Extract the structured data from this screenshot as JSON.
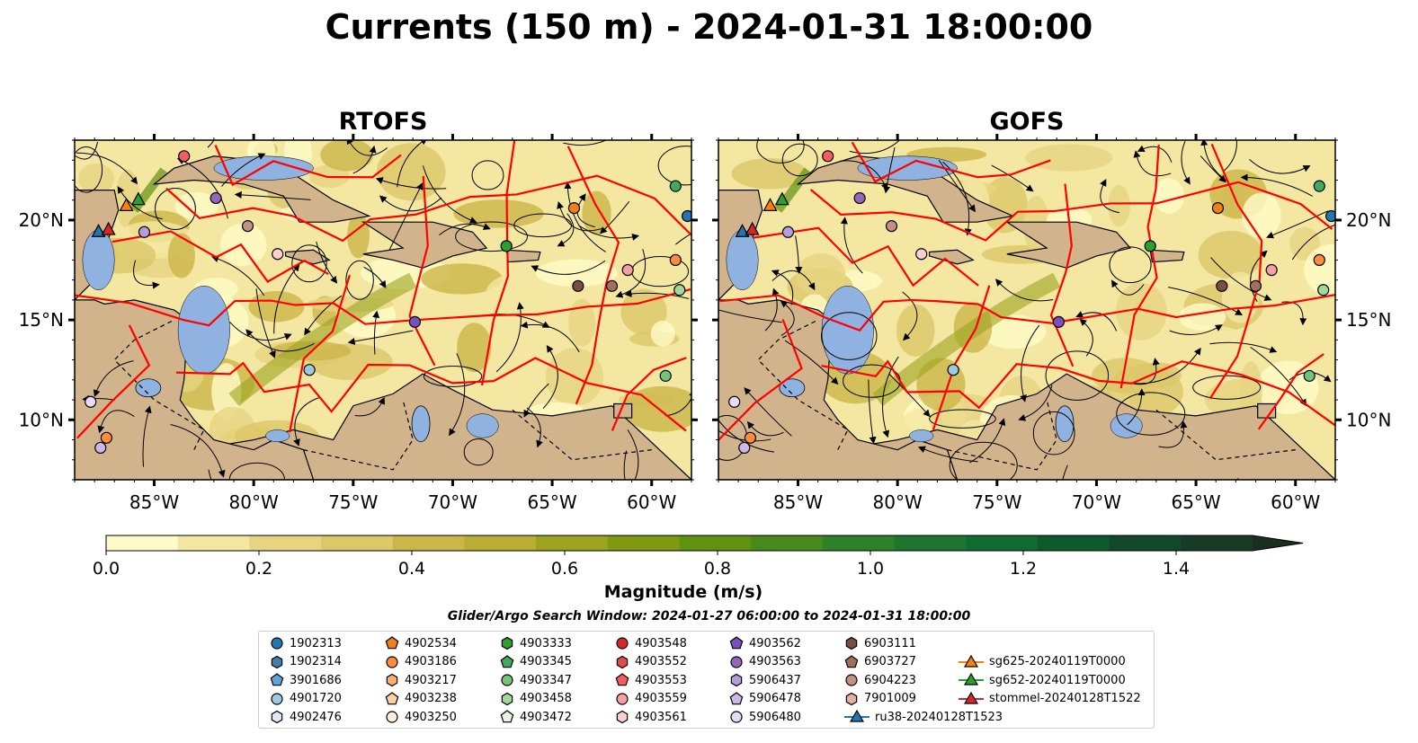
{
  "title": "Currents (150 m) - 2024-01-31 18:00:00",
  "colors": {
    "land": "#d2b48c",
    "shallow_water": "#8fb2e0",
    "eez_lines": "#ff0000",
    "coastline": "#000000"
  },
  "chart_data": [
    {
      "type": "heatmap",
      "title": "RTOFS",
      "xlabel": "",
      "ylabel": "",
      "xlim": [
        -89,
        -58
      ],
      "ylim": [
        7,
        24
      ],
      "x_ticks": [
        {
          "value": -85,
          "label": "85°W"
        },
        {
          "value": -80,
          "label": "80°W"
        },
        {
          "value": -75,
          "label": "75°W"
        },
        {
          "value": -70,
          "label": "70°W"
        },
        {
          "value": -65,
          "label": "65°W"
        },
        {
          "value": -60,
          "label": "60°W"
        }
      ],
      "y_ticks": [
        {
          "value": 10,
          "label": "10°N"
        },
        {
          "value": 15,
          "label": "15°N"
        },
        {
          "value": 20,
          "label": "20°N"
        }
      ]
    },
    {
      "type": "heatmap",
      "title": "GOFS",
      "xlabel": "",
      "ylabel": "",
      "xlim": [
        -89,
        -58
      ],
      "ylim": [
        7,
        24
      ],
      "x_ticks": [
        {
          "value": -85,
          "label": "85°W"
        },
        {
          "value": -80,
          "label": "80°W"
        },
        {
          "value": -75,
          "label": "75°W"
        },
        {
          "value": -70,
          "label": "70°W"
        },
        {
          "value": -65,
          "label": "65°W"
        },
        {
          "value": -60,
          "label": "60°W"
        }
      ],
      "y_ticks": [
        {
          "value": 10,
          "label": "10°N"
        },
        {
          "value": 15,
          "label": "15°N"
        },
        {
          "value": 20,
          "label": "20°N"
        }
      ]
    }
  ],
  "colorbar": {
    "label": "Magnitude (m/s)",
    "range": [
      0.0,
      1.5
    ],
    "extend": "max",
    "ticks": [
      {
        "value": 0.0,
        "label": "0.0"
      },
      {
        "value": 0.2,
        "label": "0.2"
      },
      {
        "value": 0.4,
        "label": "0.4"
      },
      {
        "value": 0.6,
        "label": "0.6"
      },
      {
        "value": 0.8,
        "label": "0.8"
      },
      {
        "value": 1.0,
        "label": "1.0"
      },
      {
        "value": 1.2,
        "label": "1.2"
      },
      {
        "value": 1.4,
        "label": "1.4"
      }
    ],
    "levels": [
      "#fffbc8",
      "#f4e7a1",
      "#e6d481",
      "#dcc869",
      "#ccb64a",
      "#b9ad33",
      "#9ba31f",
      "#7f9a12",
      "#619111",
      "#468a1d",
      "#2e8128",
      "#1d7530",
      "#116a30",
      "#0d5b2d",
      "#12492a",
      "#173b26",
      "#1a2e20"
    ]
  },
  "search_window": "Glider/Argo Search Window: 2024-01-27 06:00:00 to 2024-01-31 18:00:00",
  "legend": [
    {
      "label": "1902313",
      "marker": "circle",
      "color": "#1f77b4"
    },
    {
      "label": "1902314",
      "marker": "hexagon",
      "color": "#3f7fb0"
    },
    {
      "label": "3901686",
      "marker": "pentagon",
      "color": "#5da4d8"
    },
    {
      "label": "4901720",
      "marker": "circle",
      "color": "#9ecae1"
    },
    {
      "label": "4902476",
      "marker": "hexagon",
      "color": "#dbeaf5"
    },
    {
      "label": "4902534",
      "marker": "pentagon",
      "color": "#f08018"
    },
    {
      "label": "4903186",
      "marker": "circle",
      "color": "#fd8d3c"
    },
    {
      "label": "4903217",
      "marker": "hexagon",
      "color": "#fdae6b"
    },
    {
      "label": "4903238",
      "marker": "pentagon",
      "color": "#fdd0a2"
    },
    {
      "label": "4903250",
      "marker": "circle",
      "color": "#feeedd"
    },
    {
      "label": "4903333",
      "marker": "hexagon",
      "color": "#2ca02c"
    },
    {
      "label": "4903345",
      "marker": "pentagon",
      "color": "#41ab5d"
    },
    {
      "label": "4903347",
      "marker": "circle",
      "color": "#74c476"
    },
    {
      "label": "4903458",
      "marker": "hexagon",
      "color": "#a1d99b"
    },
    {
      "label": "4903472",
      "marker": "pentagon",
      "color": "#e5f5e0"
    },
    {
      "label": "4903548",
      "marker": "circle",
      "color": "#d62728"
    },
    {
      "label": "4903552",
      "marker": "hexagon",
      "color": "#e34a4a"
    },
    {
      "label": "4903553",
      "marker": "pentagon",
      "color": "#f16060"
    },
    {
      "label": "4903559",
      "marker": "circle",
      "color": "#f4a0a0"
    },
    {
      "label": "4903561",
      "marker": "hexagon",
      "color": "#fcd0d0"
    },
    {
      "label": "4903562",
      "marker": "pentagon",
      "color": "#7b4fbf"
    },
    {
      "label": "4903563",
      "marker": "circle",
      "color": "#9467bd"
    },
    {
      "label": "5906437",
      "marker": "hexagon",
      "color": "#b39ddb"
    },
    {
      "label": "5906478",
      "marker": "pentagon",
      "color": "#cbb8e8"
    },
    {
      "label": "5906480",
      "marker": "circle",
      "color": "#e8dcf5"
    },
    {
      "label": "6903111",
      "marker": "hexagon",
      "color": "#7b4f3f"
    },
    {
      "label": "6903727",
      "marker": "pentagon",
      "color": "#a0705a"
    },
    {
      "label": "6904223",
      "marker": "circle",
      "color": "#c49080"
    },
    {
      "label": "7901009",
      "marker": "hexagon",
      "color": "#e8b0a0"
    },
    {
      "label": "ru38-20240128T1523",
      "marker": "triangle-line",
      "color": "#1f77b4"
    },
    {
      "label": "sg625-20240119T0000",
      "marker": "triangle-line",
      "color": "#ff7f0e"
    },
    {
      "label": "sg652-20240119T0000",
      "marker": "triangle-line",
      "color": "#2ca02c"
    },
    {
      "label": "stommel-20240128T1522",
      "marker": "triangle-line",
      "color": "#d62728"
    }
  ]
}
